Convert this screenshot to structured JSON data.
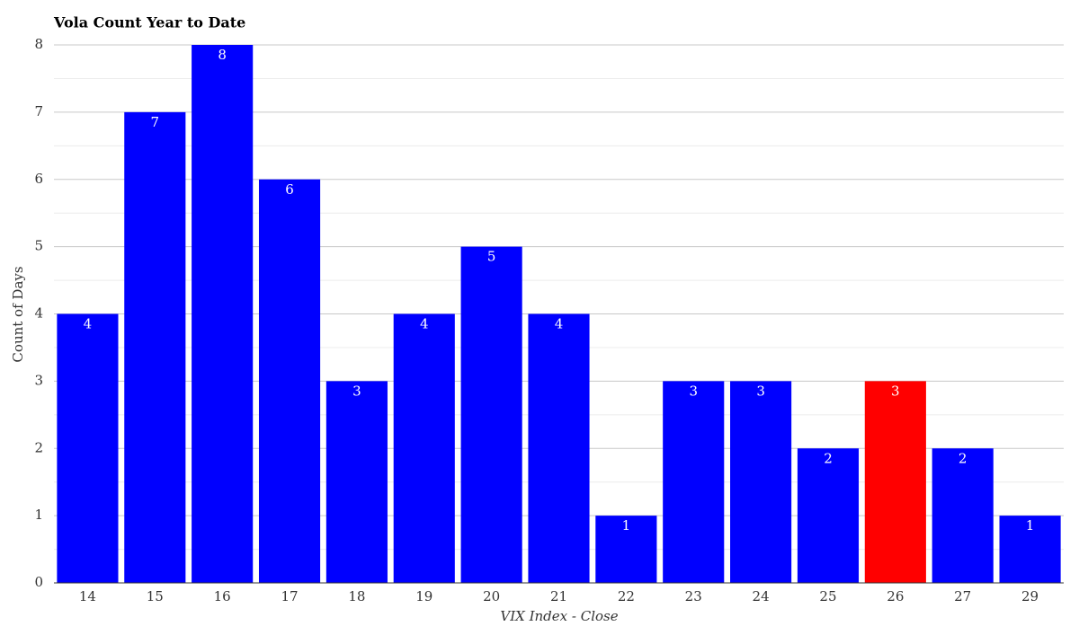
{
  "chart_data": {
    "type": "bar",
    "title": "Vola Count Year to Date",
    "x_label": "VIX Index - Close",
    "y_label": "Count of Days",
    "categories": [
      "14",
      "15",
      "16",
      "17",
      "18",
      "19",
      "20",
      "21",
      "22",
      "23",
      "24",
      "25",
      "26",
      "27",
      "29"
    ],
    "values": [
      4,
      7,
      8,
      6,
      3,
      4,
      5,
      4,
      1,
      3,
      3,
      2,
      3,
      2,
      1
    ],
    "colors": [
      "#0000ff",
      "#0000ff",
      "#0000ff",
      "#0000ff",
      "#0000ff",
      "#0000ff",
      "#0000ff",
      "#0000ff",
      "#0000ff",
      "#0000ff",
      "#0000ff",
      "#0000ff",
      "#ff0000",
      "#0000ff",
      "#0000ff"
    ],
    "ylim": [
      0,
      8
    ],
    "yticks": [
      0,
      1,
      2,
      3,
      4,
      5,
      6,
      7,
      8
    ],
    "grid": true,
    "minor_grid": true
  }
}
